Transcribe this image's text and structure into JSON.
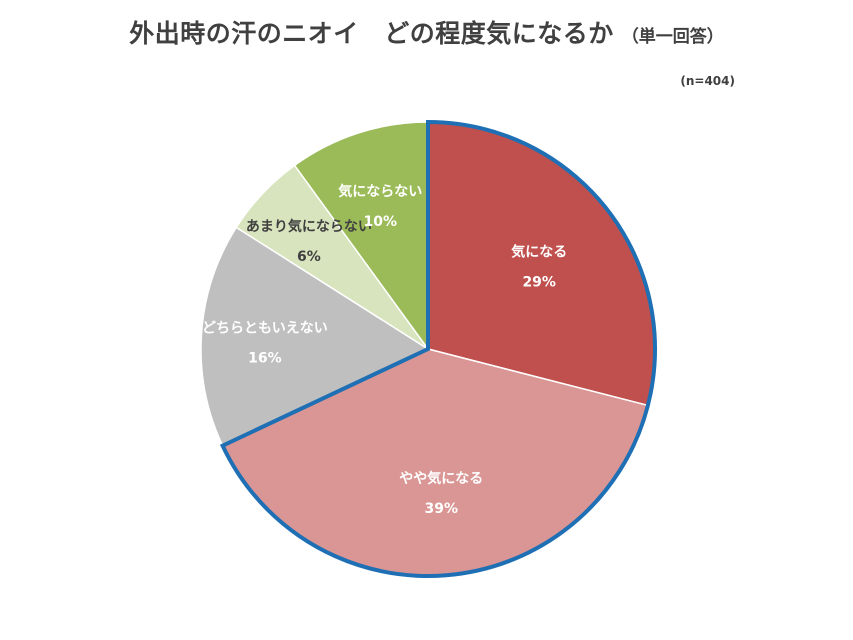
{
  "title": {
    "main": "外出時の汗のニオイ　どの程度気になるか",
    "sub": "（単一回答）"
  },
  "sample_note": "(n=404)",
  "chart_data": {
    "type": "pie",
    "title": "外出時の汗のニオイ　どの程度気になるか",
    "start_angle_deg": 0,
    "direction": "clockwise",
    "slices": [
      {
        "label": "気になる",
        "value": 29,
        "pct_label": "29%",
        "color": "#c0504d",
        "text_color": "#ffffff",
        "highlighted": true
      },
      {
        "label": "やや気になる",
        "value": 39,
        "pct_label": "39%",
        "color": "#d99694",
        "text_color": "#ffffff",
        "highlighted": true
      },
      {
        "label": "どちらともいえない",
        "value": 16,
        "pct_label": "16%",
        "color": "#bfbfbf",
        "text_color": "#ffffff",
        "highlighted": false
      },
      {
        "label": "あまり気にならない",
        "value": 6,
        "pct_label": "6%",
        "color": "#d7e4bd",
        "text_color": "#404040",
        "highlighted": false
      },
      {
        "label": "気にならない",
        "value": 10,
        "pct_label": "10%",
        "color": "#9bbb59",
        "text_color": "#ffffff",
        "highlighted": false
      }
    ],
    "highlight_color": "#1f6fb5"
  }
}
